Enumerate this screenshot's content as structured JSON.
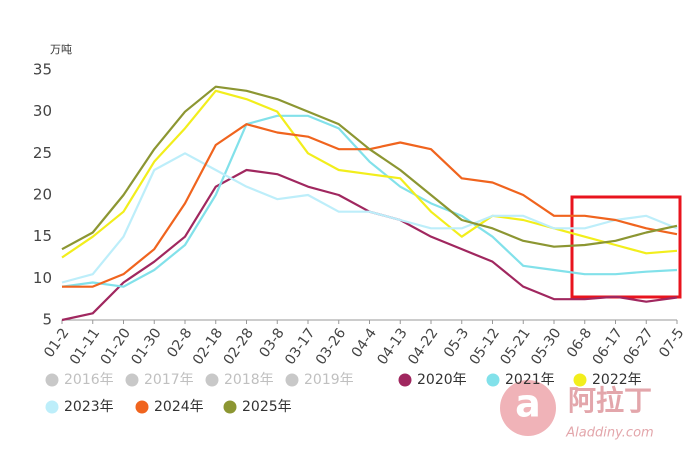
{
  "chart_data": {
    "type": "line",
    "y_unit": "万吨",
    "categories": [
      "01-2",
      "01-11",
      "01-20",
      "01-30",
      "02-8",
      "02-18",
      "02-28",
      "03-8",
      "03-17",
      "03-26",
      "04-4",
      "04-13",
      "04-22",
      "05-3",
      "05-12",
      "05-21",
      "05-30",
      "06-8",
      "06-17",
      "06-27",
      "07-5"
    ],
    "ylim": [
      5,
      35
    ],
    "yticks": [
      5,
      10,
      15,
      20,
      25,
      30,
      35
    ],
    "grid": false,
    "series": [
      {
        "name": "2016年",
        "color": "#c8c8c8",
        "visible": false,
        "values": [
          null,
          null,
          null,
          null,
          null,
          null,
          null,
          null,
          null,
          null,
          null,
          null,
          null,
          null,
          null,
          null,
          null,
          null,
          null,
          null,
          null
        ]
      },
      {
        "name": "2017年",
        "color": "#c8c8c8",
        "visible": false,
        "values": [
          null,
          null,
          null,
          null,
          null,
          null,
          null,
          null,
          null,
          null,
          null,
          null,
          null,
          null,
          null,
          null,
          null,
          null,
          null,
          null,
          null
        ]
      },
      {
        "name": "2018年",
        "color": "#c8c8c8",
        "visible": false,
        "values": [
          null,
          null,
          null,
          null,
          null,
          null,
          null,
          null,
          null,
          null,
          null,
          null,
          null,
          null,
          null,
          null,
          null,
          null,
          null,
          null,
          null
        ]
      },
      {
        "name": "2019年",
        "color": "#c8c8c8",
        "visible": false,
        "values": [
          null,
          null,
          null,
          null,
          null,
          null,
          null,
          null,
          null,
          null,
          null,
          null,
          null,
          null,
          null,
          null,
          null,
          null,
          null,
          null,
          null
        ]
      },
      {
        "name": "2020年",
        "color": "#a0275f",
        "visible": true,
        "values": [
          5,
          5.8,
          9.5,
          12,
          15,
          21,
          23,
          22.5,
          21,
          20,
          18,
          17,
          15,
          13.5,
          12,
          9,
          7.5,
          7.5,
          7.8,
          7.2,
          7.7
        ]
      },
      {
        "name": "2021年",
        "color": "#82e1ea",
        "visible": true,
        "values": [
          9,
          9.5,
          9,
          11,
          14,
          20,
          28.5,
          29.5,
          29.5,
          28,
          24,
          21,
          19,
          17.5,
          15,
          11.5,
          11,
          10.5,
          10.5,
          10.8,
          11
        ]
      },
      {
        "name": "2022年",
        "color": "#f2ee1c",
        "visible": true,
        "values": [
          12.5,
          15,
          18,
          24,
          28,
          32.5,
          31.5,
          30,
          25,
          23,
          22.5,
          22,
          18,
          15,
          17.5,
          17,
          16,
          15,
          14,
          13,
          13.3
        ]
      },
      {
        "name": "2023年",
        "color": "#bdeefa",
        "visible": true,
        "values": [
          9.5,
          10.5,
          15,
          23,
          25,
          23,
          21,
          19.5,
          20,
          18,
          18,
          17,
          16,
          16,
          17.5,
          17.5,
          16,
          16,
          17,
          17.5,
          16
        ]
      },
      {
        "name": "2024年",
        "color": "#f0641e",
        "visible": true,
        "values": [
          9,
          9,
          10.5,
          13.5,
          19,
          26,
          28.5,
          27.5,
          27,
          25.5,
          25.5,
          26.3,
          25.5,
          22,
          21.5,
          20,
          17.5,
          17.5,
          17,
          16,
          15.3
        ]
      },
      {
        "name": "2025年",
        "color": "#8c9632",
        "visible": true,
        "values": [
          13.5,
          15.5,
          20,
          25.5,
          30,
          33,
          32.5,
          31.5,
          30,
          28.5,
          25.5,
          23,
          20,
          17,
          16,
          14.5,
          13.8,
          14,
          14.5,
          15.5,
          16.3
        ]
      }
    ],
    "brand": "阿拉丁",
    "brand_url": "Aladdiny.com"
  }
}
